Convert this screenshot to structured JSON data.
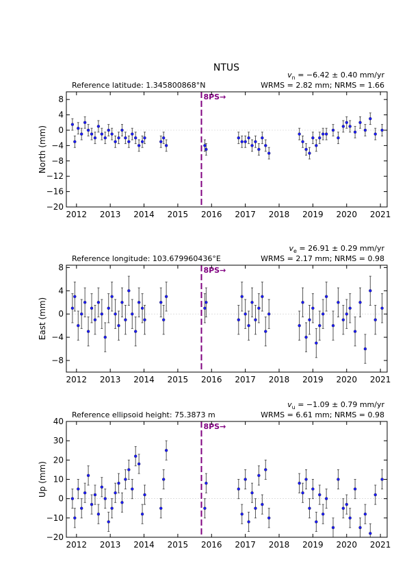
{
  "title": "NTUS",
  "chart_data": [
    {
      "type": "scatter",
      "subtitle": "Reference latitude: 1.345800868°N",
      "velocity": {
        "symbol": "v",
        "subscript": "n",
        "text": " = −6.42 ± 0.40 mm/yr"
      },
      "stats": "WRMS = 2.82 mm; NRMS = 1.66",
      "ylabel": "North (mm)",
      "x": [
        2011.88,
        2011.95,
        2012.05,
        2012.15,
        2012.25,
        2012.35,
        2012.45,
        2012.55,
        2012.65,
        2012.75,
        2012.85,
        2012.95,
        2013.05,
        2013.15,
        2013.25,
        2013.35,
        2013.45,
        2013.55,
        2013.65,
        2013.75,
        2013.85,
        2013.95,
        2014.02,
        2014.5,
        2014.58,
        2014.66,
        2015.8,
        2015.84,
        2016.8,
        2016.9,
        2017.0,
        2017.1,
        2017.2,
        2017.3,
        2017.4,
        2017.5,
        2017.6,
        2017.7,
        2018.6,
        2018.7,
        2018.8,
        2018.9,
        2019.0,
        2019.1,
        2019.2,
        2019.3,
        2019.4,
        2019.6,
        2019.75,
        2019.9,
        2020.0,
        2020.1,
        2020.25,
        2020.4,
        2020.55,
        2020.7,
        2020.85,
        2021.05
      ],
      "values": [
        1.5,
        -3,
        0.5,
        -1,
        2,
        0,
        -1,
        -2,
        1,
        -1,
        -2,
        0,
        -1,
        -3,
        -2,
        0,
        -2,
        -3,
        -1,
        -2,
        -4,
        -3,
        -2,
        -3,
        -2,
        -4,
        -4,
        -5,
        -2,
        -3,
        -3,
        -2,
        -4,
        -3,
        -5,
        -2,
        -4,
        -6,
        -1,
        -3,
        -5,
        -6,
        -2,
        -4,
        -2,
        -1,
        -1,
        0,
        -2,
        1,
        2,
        1,
        -0.5,
        2,
        0,
        3,
        -1,
        0
      ],
      "errors": [
        1.5,
        1.5,
        1.5,
        1.5,
        1.5,
        1.5,
        1.5,
        1.5,
        1.5,
        1.5,
        1.5,
        1.5,
        1.5,
        1.5,
        1.5,
        1.5,
        1.5,
        1.5,
        1.5,
        1.5,
        1.5,
        1.5,
        1.5,
        1.5,
        1.5,
        1.5,
        1.5,
        1.5,
        1.5,
        1.5,
        1.5,
        1.5,
        1.5,
        1.5,
        1.5,
        1.5,
        1.5,
        1.5,
        1.5,
        1.5,
        1.5,
        1.5,
        1.5,
        1.5,
        1.5,
        1.5,
        1.5,
        1.5,
        1.5,
        1.5,
        1.5,
        1.5,
        1.5,
        1.5,
        1.5,
        1.5,
        1.5,
        1.5
      ],
      "color": "#1a1aff",
      "error_color": "#555555",
      "event": {
        "x": 2015.7,
        "label": "8PS→",
        "color": "#800080"
      },
      "xlim": [
        2011.7,
        2021.2
      ],
      "xticks": [
        2012,
        2013,
        2014,
        2015,
        2016,
        2017,
        2018,
        2019,
        2020,
        2021
      ],
      "ylim": [
        -20,
        10
      ],
      "yticks": [
        {
          "value": -20,
          "label": "−20"
        },
        {
          "value": -16,
          "label": "−16"
        },
        {
          "value": -12,
          "label": "−12"
        },
        {
          "value": -8,
          "label": "−8"
        },
        {
          "value": -4,
          "label": "−4"
        },
        0,
        4,
        8
      ],
      "zero_line": true
    },
    {
      "type": "scatter",
      "subtitle": "Reference longitude: 103.679960436°E",
      "velocity": {
        "symbol": "v",
        "subscript": "e",
        "text": " = 26.91 ± 0.29 mm/yr"
      },
      "stats": "WRMS = 2.17 mm; NRMS = 0.98",
      "ylabel": "East (mm)",
      "x": [
        2011.88,
        2011.95,
        2012.05,
        2012.15,
        2012.25,
        2012.35,
        2012.45,
        2012.55,
        2012.65,
        2012.75,
        2012.85,
        2012.95,
        2013.05,
        2013.15,
        2013.25,
        2013.35,
        2013.45,
        2013.55,
        2013.65,
        2013.75,
        2013.85,
        2013.95,
        2014.02,
        2014.5,
        2014.58,
        2014.66,
        2015.8,
        2015.84,
        2016.8,
        2016.9,
        2017.0,
        2017.1,
        2017.2,
        2017.3,
        2017.4,
        2017.5,
        2017.6,
        2017.7,
        2018.6,
        2018.7,
        2018.8,
        2018.9,
        2019.0,
        2019.1,
        2019.2,
        2019.3,
        2019.4,
        2019.6,
        2019.75,
        2019.9,
        2020.0,
        2020.1,
        2020.25,
        2020.4,
        2020.55,
        2020.7,
        2020.85,
        2021.05
      ],
      "values": [
        1,
        3,
        -2,
        0,
        2,
        -3,
        1,
        -1,
        2,
        0,
        -4,
        1,
        3,
        0,
        -2,
        2,
        -1,
        4,
        0,
        -3,
        2,
        1,
        -1,
        2,
        -1,
        3,
        1,
        2,
        -1,
        3,
        0,
        -2,
        2,
        -1,
        1,
        3,
        -3,
        0,
        -2,
        2,
        -4,
        -1,
        1,
        -5,
        -2,
        0,
        3,
        -2,
        2,
        -1,
        0,
        1,
        -3,
        2,
        -6,
        4,
        -1,
        1
      ],
      "errors": [
        2.5,
        2.5,
        2.5,
        2.5,
        2.5,
        2.5,
        2.5,
        2.5,
        2.5,
        2.5,
        2.5,
        2.5,
        2.5,
        2.5,
        2.5,
        2.5,
        2.5,
        2.5,
        2.5,
        2.5,
        2.5,
        2.5,
        2.5,
        2.5,
        2.5,
        2.5,
        2.5,
        2.5,
        2.5,
        2.5,
        2.5,
        2.5,
        2.5,
        2.5,
        2.5,
        2.5,
        2.5,
        2.5,
        2.5,
        2.5,
        2.5,
        2.5,
        2.5,
        2.5,
        2.5,
        2.5,
        2.5,
        2.5,
        2.5,
        2.5,
        2.5,
        2.5,
        2.5,
        2.5,
        2.5,
        2.5,
        2.5,
        2.5
      ],
      "color": "#1a1aff",
      "error_color": "#555555",
      "event": {
        "x": 2015.7,
        "label": "8PS→",
        "color": "#800080"
      },
      "xlim": [
        2011.7,
        2021.2
      ],
      "xticks": [
        2012,
        2013,
        2014,
        2015,
        2016,
        2017,
        2018,
        2019,
        2020,
        2021
      ],
      "ylim": [
        -10,
        8.4
      ],
      "yticks": [
        {
          "value": -8,
          "label": "−8"
        },
        {
          "value": -4,
          "label": "−4"
        },
        0,
        4,
        8
      ],
      "zero_line": true
    },
    {
      "type": "scatter",
      "subtitle": "Reference ellipsoid height: 75.3873 m",
      "velocity": {
        "symbol": "v",
        "subscript": "u",
        "text": " = −1.09 ± 0.79 mm/yr"
      },
      "stats": "WRMS = 6.61 mm; NRMS = 0.98",
      "ylabel": "Up (mm)",
      "x": [
        2011.88,
        2011.95,
        2012.05,
        2012.15,
        2012.25,
        2012.35,
        2012.45,
        2012.55,
        2012.65,
        2012.75,
        2012.85,
        2012.95,
        2013.05,
        2013.15,
        2013.25,
        2013.35,
        2013.45,
        2013.55,
        2013.65,
        2013.75,
        2013.85,
        2013.95,
        2014.02,
        2014.5,
        2014.58,
        2014.66,
        2015.8,
        2015.84,
        2016.8,
        2016.9,
        2017.0,
        2017.1,
        2017.2,
        2017.3,
        2017.4,
        2017.5,
        2017.6,
        2017.7,
        2018.6,
        2018.7,
        2018.8,
        2018.9,
        2019.0,
        2019.1,
        2019.2,
        2019.3,
        2019.4,
        2019.6,
        2019.75,
        2019.9,
        2020.0,
        2020.1,
        2020.25,
        2020.4,
        2020.55,
        2020.7,
        2020.85,
        2021.05
      ],
      "values": [
        0,
        -10,
        5,
        -5,
        3,
        12,
        -3,
        2,
        -8,
        6,
        0,
        -12,
        -5,
        3,
        8,
        -2,
        10,
        15,
        5,
        22,
        18,
        -8,
        2,
        -5,
        10,
        25,
        -5,
        8,
        5,
        -8,
        10,
        -12,
        3,
        -5,
        12,
        -3,
        15,
        -10,
        8,
        3,
        10,
        -5,
        5,
        -12,
        2,
        -8,
        0,
        -15,
        10,
        -5,
        -3,
        -10,
        5,
        -15,
        -8,
        -18,
        2,
        10
      ],
      "errors": [
        5,
        5,
        5,
        5,
        5,
        5,
        5,
        5,
        5,
        5,
        5,
        5,
        5,
        5,
        5,
        5,
        5,
        5,
        5,
        5,
        5,
        5,
        5,
        5,
        5,
        5,
        5,
        5,
        5,
        5,
        5,
        5,
        5,
        5,
        5,
        5,
        5,
        5,
        5,
        5,
        5,
        5,
        5,
        5,
        5,
        5,
        5,
        5,
        5,
        5,
        5,
        5,
        5,
        5,
        5,
        5,
        5,
        5
      ],
      "color": "#1a1aff",
      "error_color": "#555555",
      "event": {
        "x": 2015.7,
        "label": "8PS→",
        "color": "#800080"
      },
      "xlim": [
        2011.7,
        2021.2
      ],
      "xticks": [
        2012,
        2013,
        2014,
        2015,
        2016,
        2017,
        2018,
        2019,
        2020,
        2021
      ],
      "ylim": [
        -20,
        40
      ],
      "yticks": [
        {
          "value": -20,
          "label": "−20"
        },
        {
          "value": -10,
          "label": "−10"
        },
        0,
        10,
        20,
        30,
        40
      ],
      "zero_line": true
    }
  ]
}
